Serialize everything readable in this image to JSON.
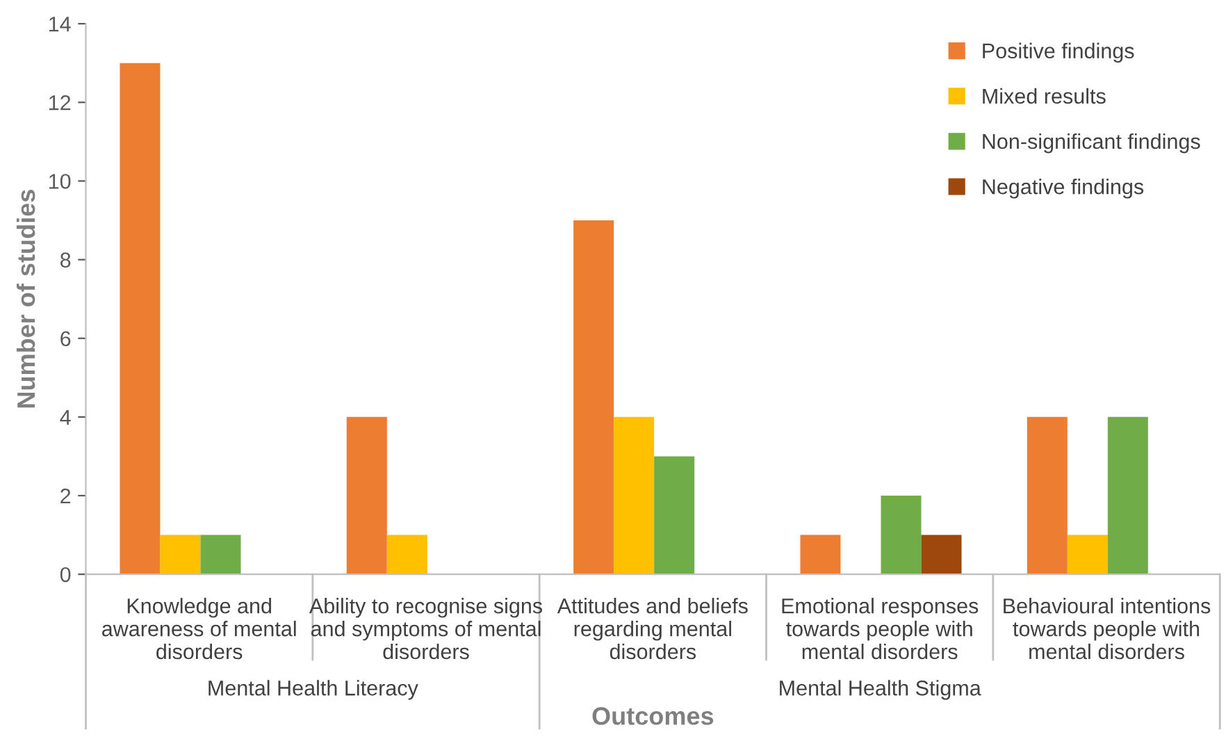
{
  "chart_data": {
    "type": "bar",
    "categories": [
      "Knowledge and\nawareness of mental\ndisorders",
      "Ability to recognise signs\nand symptoms of mental\ndisorders",
      "Attitudes and beliefs\nregarding mental\ndisorders",
      "Emotional responses\ntowards people with\nmental disorders",
      "Behavioural intentions\ntowards people with\nmental disorders"
    ],
    "series": [
      {
        "name": "Positive findings",
        "color": "#ed7d31",
        "values": [
          13,
          4,
          9,
          1,
          4
        ]
      },
      {
        "name": "Mixed results",
        "color": "#ffc000",
        "values": [
          1,
          1,
          4,
          null,
          1
        ]
      },
      {
        "name": "Non-significant findings",
        "color": "#70ad47",
        "values": [
          1,
          null,
          3,
          2,
          4
        ]
      },
      {
        "name": "Negative findings",
        "color": "#9e480e",
        "values": [
          null,
          null,
          null,
          1,
          null
        ]
      }
    ],
    "ylim": [
      0,
      14
    ],
    "yticks": [
      0,
      2,
      4,
      6,
      8,
      10,
      12,
      14
    ],
    "ylabel": "Number of studies",
    "xlabel": "Outcomes",
    "annotations": [
      "Mental Health Literacy",
      "Mental Health Stigma"
    ],
    "grid": false,
    "legend": "top right"
  }
}
